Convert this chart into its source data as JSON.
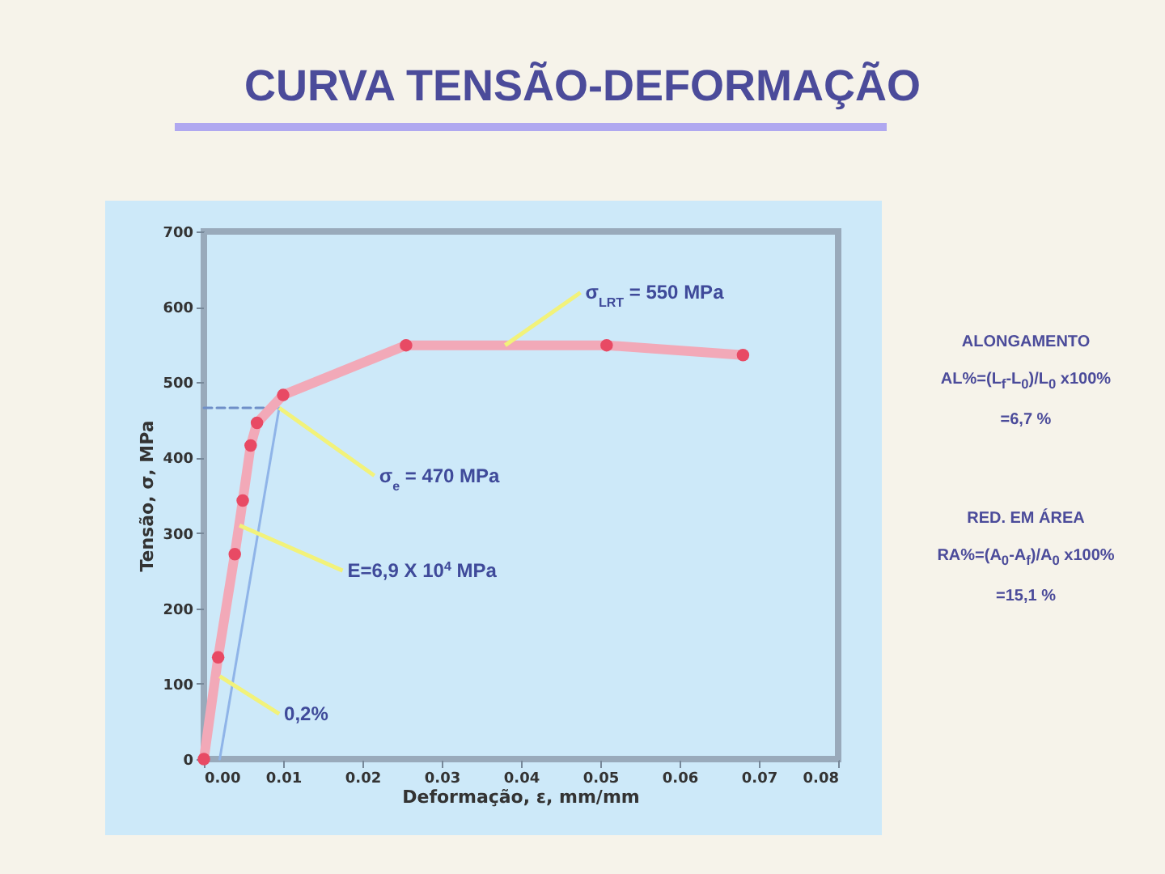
{
  "chart_data": {
    "type": "line",
    "title": "CURVA TENSÃO-DEFORMAÇÃO",
    "xlabel": "Deformação, ε, mm/mm",
    "ylabel": "Tensão, σ, MPa",
    "xlim": [
      0,
      0.08
    ],
    "ylim": [
      0,
      700
    ],
    "xticks": [
      {
        "value": 0,
        "label": "0.00"
      },
      {
        "value": 0.01,
        "label": "0.01"
      },
      {
        "value": 0.02,
        "label": "0.02"
      },
      {
        "value": 0.03,
        "label": "0.03"
      },
      {
        "value": 0.04,
        "label": "0.04"
      },
      {
        "value": 0.05,
        "label": "0.05"
      },
      {
        "value": 0.06,
        "label": "0.06"
      },
      {
        "value": 0.07,
        "label": "0.07"
      },
      {
        "value": 0.08,
        "label": "0.08"
      }
    ],
    "yticks": [
      0,
      100,
      200,
      300,
      400,
      500,
      600,
      700
    ],
    "series": [
      {
        "color": "#8fb4e8",
        "x": [
          0.002,
          0.0095
        ],
        "values": [
          0,
          466
        ],
        "marker": "none",
        "line_style": "solid"
      },
      {
        "color": "#6f8fc8",
        "x": [
          0,
          0.0095
        ],
        "values": [
          466,
          466
        ],
        "marker": "none",
        "line_style": "dashed"
      },
      {
        "color": "#e84a64",
        "x": [
          0,
          0.0018,
          0.0039,
          0.0049,
          0.0059,
          0.0067,
          0.01,
          0.0255,
          0.0508,
          0.068
        ],
        "values": [
          0,
          135,
          272,
          343,
          416,
          446,
          483,
          549,
          549,
          536
        ],
        "marker": "circle",
        "line_style": "solid"
      }
    ],
    "annotations": [
      {
        "text": "σ$_{LRT}$ = 550 MPa",
        "x": 0.038,
        "y": 549
      },
      {
        "text": "σ$_{e}$ = 470 MPa",
        "x": 0.0095,
        "y": 466
      },
      {
        "text": "E=6,9 X 10$^{4}$ MPa",
        "x": 0.0045,
        "y": 310
      },
      {
        "text": "0,2%",
        "x": 0.002,
        "y": 110
      },
      "ALONGAMENTO",
      "AL%=(L$_{f}$-L$_{0}$)/L$_{0}$ x100%",
      "=6,7 %",
      "RED. EM ÁREA",
      "RA%=(A$_{0}$-A$_{f}$)/A$_{0}$ x100%",
      "=15,1 %"
    ]
  }
}
